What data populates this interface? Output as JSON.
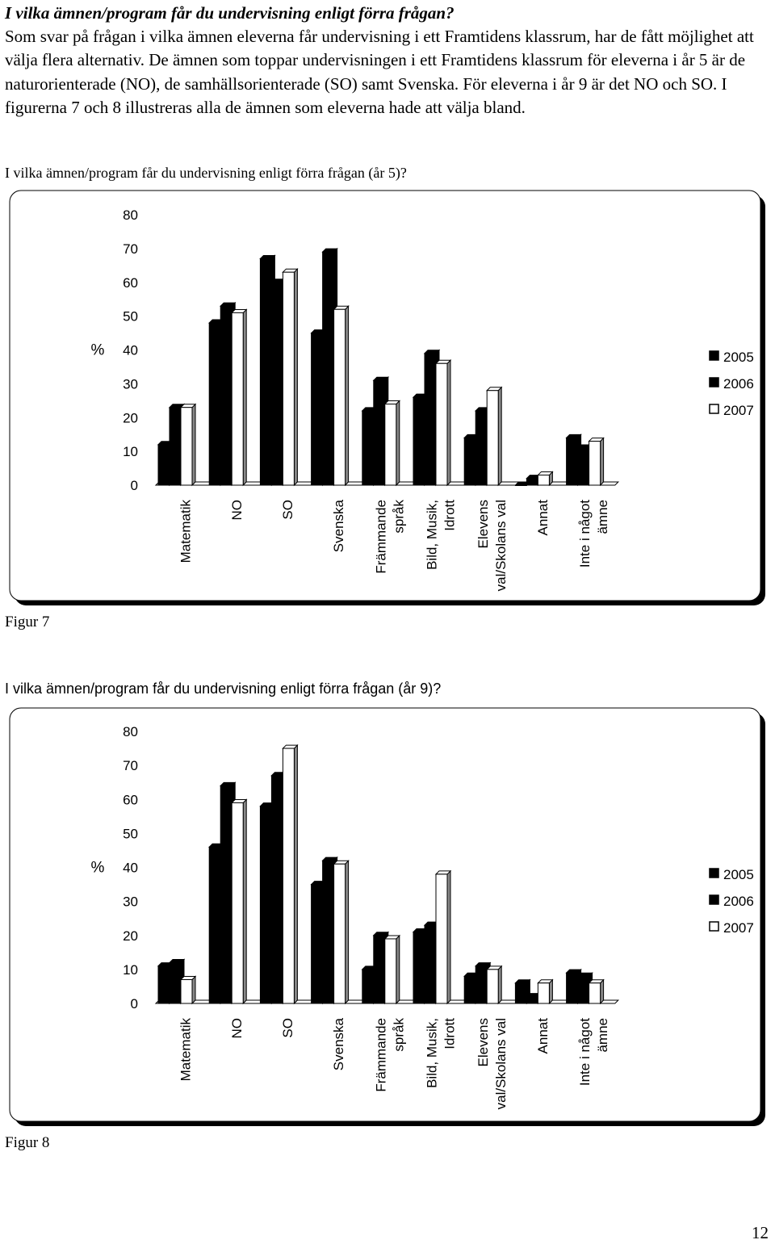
{
  "intro": {
    "question": "I vilka ämnen/program får du undervisning enligt förra frågan?",
    "text": "Som svar på frågan i vilka ämnen eleverna får undervisning i ett Framtidens klassrum, har de fått möjlighet att välja flera alternativ. De ämnen som toppar undervisningen i ett Framtidens klassrum för eleverna i år 5 är de naturorienterade (NO), de samhällsorienterade (SO) samt Svenska. För eleverna i år 9 är det NO och SO. I figurerna 7 och 8 illustreras alla de ämnen som eleverna hade att välja bland."
  },
  "figure7": {
    "heading": "I vilka ämnen/program får du undervisning enligt förra frågan (år 5)?",
    "label": "Figur 7"
  },
  "figure8": {
    "heading": "I vilka ämnen/program får du undervisning enligt förra frågan (år 9)?",
    "label": "Figur 8"
  },
  "page_number": "12",
  "chart_data": [
    {
      "type": "bar",
      "ylabel": "%",
      "ylim": [
        0,
        80
      ],
      "yticks": [
        0,
        10,
        20,
        30,
        40,
        50,
        60,
        70,
        80
      ],
      "categories": [
        [
          "Matematik"
        ],
        [
          "NO"
        ],
        [
          "SO"
        ],
        [
          "Svenska"
        ],
        [
          "Främmande",
          "språk"
        ],
        [
          "Bild, Musik,",
          "Idrott"
        ],
        [
          "Elevens",
          "val/Skolans val"
        ],
        [
          "Annat"
        ],
        [
          "Inte i något",
          "ämne"
        ]
      ],
      "series": [
        {
          "name": "2005",
          "color": "#000000",
          "values": [
            12,
            48,
            67,
            45,
            22,
            26,
            14,
            0,
            14
          ]
        },
        {
          "name": "2006",
          "color": "#000000",
          "values": [
            23,
            53,
            60,
            69,
            31,
            39,
            22,
            2,
            11
          ]
        },
        {
          "name": "2007",
          "color": "#ffffff",
          "values": [
            23,
            51,
            63,
            52,
            24,
            36,
            28,
            3,
            13
          ]
        }
      ],
      "legend": "right",
      "grid": false
    },
    {
      "type": "bar",
      "ylabel": "%",
      "ylim": [
        0,
        80
      ],
      "yticks": [
        0,
        10,
        20,
        30,
        40,
        50,
        60,
        70,
        80
      ],
      "categories": [
        [
          "Matematik"
        ],
        [
          "NO"
        ],
        [
          "SO"
        ],
        [
          "Svenska"
        ],
        [
          "Främmande",
          "språk"
        ],
        [
          "Bild, Musik,",
          "Idrott"
        ],
        [
          "Elevens",
          "val/Skolans val"
        ],
        [
          "Annat"
        ],
        [
          "Inte i något",
          "ämne"
        ]
      ],
      "series": [
        {
          "name": "2005",
          "color": "#000000",
          "values": [
            11,
            46,
            58,
            35,
            10,
            21,
            8,
            6,
            9
          ]
        },
        {
          "name": "2006",
          "color": "#000000",
          "values": [
            12,
            64,
            67,
            42,
            20,
            23,
            11,
            2,
            8
          ]
        },
        {
          "name": "2007",
          "color": "#ffffff",
          "values": [
            7,
            59,
            75,
            41,
            19,
            38,
            10,
            6,
            6
          ]
        }
      ],
      "legend": "right",
      "grid": false
    }
  ]
}
